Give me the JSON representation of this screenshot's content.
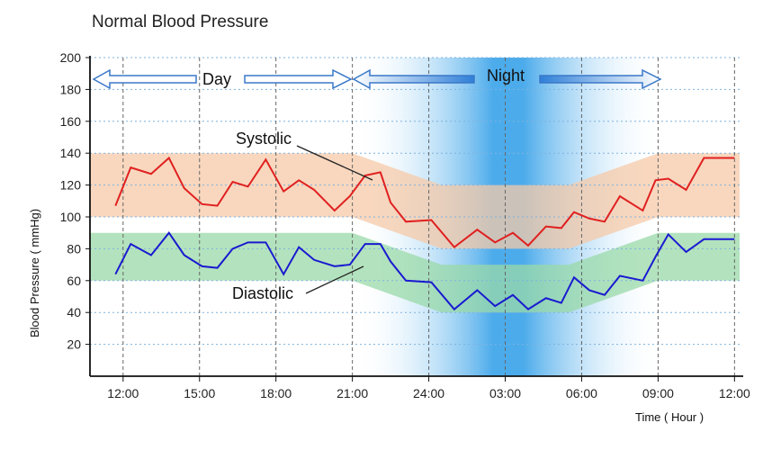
{
  "chart_data": {
    "type": "line",
    "title": "Normal Blood Pressure",
    "xlabel": "Time ( Hour )",
    "ylabel": "Blood Pressure ( mmHg)",
    "ylim": [
      0,
      200
    ],
    "yticks": [
      20,
      40,
      60,
      80,
      100,
      120,
      140,
      160,
      180,
      200
    ],
    "xticks": [
      {
        "hour": 12,
        "label": "12:00"
      },
      {
        "hour": 15,
        "label": "15:00"
      },
      {
        "hour": 18,
        "label": "18:00"
      },
      {
        "hour": 21,
        "label": "21:00"
      },
      {
        "hour": 24,
        "label": "24:00"
      },
      {
        "hour": 27,
        "label": "03:00"
      },
      {
        "hour": 30,
        "label": "06:00"
      },
      {
        "hour": 33,
        "label": "09:00"
      },
      {
        "hour": 36,
        "label": "12:00"
      }
    ],
    "xlim": [
      10.7,
      36.2
    ],
    "series": [
      {
        "name": "Systolic",
        "color": "#e02020",
        "x": [
          11.7,
          12.3,
          13.1,
          13.8,
          14.4,
          15.1,
          15.7,
          16.3,
          16.9,
          17.6,
          18.3,
          18.9,
          19.5,
          20.3,
          20.9,
          21.5,
          22.1,
          22.5,
          23.1,
          24.1,
          25.0,
          25.9,
          26.6,
          27.3,
          27.9,
          28.6,
          29.2,
          29.7,
          30.3,
          30.9,
          31.5,
          32.4,
          32.9,
          33.4,
          34.1,
          34.8,
          35.3,
          36.0
        ],
        "y": [
          107,
          131,
          127,
          137,
          118,
          108,
          107,
          122,
          119,
          136,
          116,
          123,
          117,
          104,
          113,
          126,
          128,
          109,
          97,
          98,
          81,
          92,
          84,
          90,
          82,
          94,
          93,
          103,
          99,
          97,
          113,
          104,
          123,
          124,
          117,
          137,
          137,
          137
        ]
      },
      {
        "name": "Diastolic",
        "color": "#1a1ad0",
        "x": [
          11.7,
          12.3,
          13.1,
          13.8,
          14.4,
          15.1,
          15.7,
          16.3,
          16.9,
          17.6,
          18.3,
          18.9,
          19.5,
          20.3,
          20.9,
          21.5,
          22.1,
          22.5,
          23.1,
          24.1,
          25.0,
          25.9,
          26.6,
          27.3,
          27.9,
          28.6,
          29.2,
          29.7,
          30.3,
          30.9,
          31.5,
          32.4,
          32.9,
          33.4,
          34.1,
          34.8,
          35.3,
          36.0
        ],
        "y": [
          64,
          83,
          76,
          90,
          76,
          69,
          68,
          80,
          84,
          84,
          64,
          81,
          73,
          69,
          70,
          83,
          83,
          72,
          60,
          59,
          42,
          54,
          44,
          51,
          42,
          49,
          46,
          62,
          54,
          51,
          63,
          60,
          75,
          89,
          78,
          86,
          86,
          86
        ]
      }
    ],
    "bands": [
      {
        "name": "systolic-normal-range",
        "color": "#f5c9a8",
        "upper": [
          [
            10.7,
            140
          ],
          [
            21,
            140
          ],
          [
            24.5,
            120
          ],
          [
            29.5,
            120
          ],
          [
            33,
            140
          ],
          [
            36.2,
            140
          ]
        ],
        "lower": [
          [
            10.7,
            100
          ],
          [
            21,
            100
          ],
          [
            24.5,
            80
          ],
          [
            29.5,
            80
          ],
          [
            33,
            100
          ],
          [
            36.2,
            100
          ]
        ]
      },
      {
        "name": "diastolic-normal-range",
        "color": "#9ad9a8",
        "upper": [
          [
            10.7,
            90
          ],
          [
            21,
            90
          ],
          [
            24.5,
            70
          ],
          [
            29.5,
            70
          ],
          [
            33,
            90
          ],
          [
            36.2,
            90
          ]
        ],
        "lower": [
          [
            10.7,
            60
          ],
          [
            21,
            60
          ],
          [
            24.5,
            40
          ],
          [
            29.5,
            40
          ],
          [
            33,
            60
          ],
          [
            36.2,
            60
          ]
        ]
      }
    ],
    "annotations": [
      {
        "text": "Systolic"
      },
      {
        "text": "Diastolic"
      },
      {
        "text": "Day"
      },
      {
        "text": "Night"
      }
    ]
  }
}
